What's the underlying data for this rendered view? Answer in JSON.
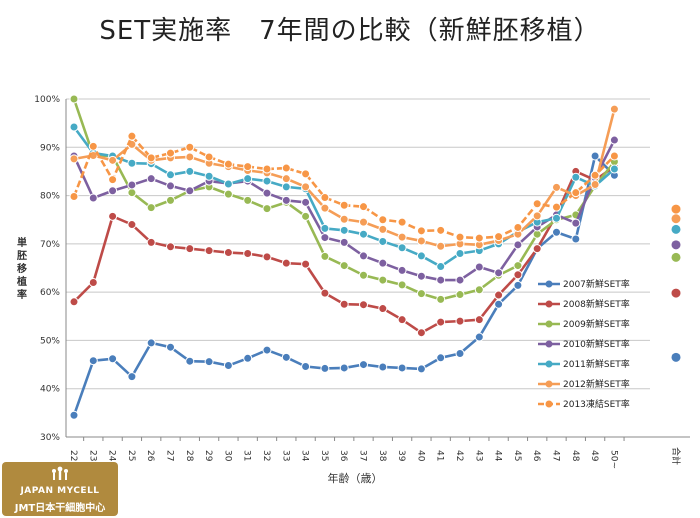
{
  "title": "SET実施率　7年間の比較（新鮮胚移植）",
  "logo": {
    "line1": "JAPAN MYCELL",
    "line2": "JMT日本干細胞中心"
  },
  "chart_data": {
    "type": "line",
    "xlabel": "年齢（歳）",
    "ylabel": "単胚移植率",
    "ylim": [
      30,
      100
    ],
    "yticks": [
      "30%",
      "40%",
      "50%",
      "60%",
      "70%",
      "80%",
      "90%",
      "100%"
    ],
    "categories": [
      "22",
      "23",
      "24",
      "25",
      "26",
      "27",
      "28",
      "29",
      "30",
      "31",
      "32",
      "33",
      "34",
      "35",
      "36",
      "37",
      "38",
      "39",
      "40",
      "41",
      "42",
      "43",
      "44",
      "45",
      "46",
      "47",
      "48",
      "49",
      "50~"
    ],
    "total_label": "合計",
    "grid": true,
    "legend_position": "right",
    "series": [
      {
        "name": "2007新鮮SET率",
        "color": "#4a7ebb",
        "total": 46.5,
        "values": [
          34.5,
          45.8,
          46.2,
          42.5,
          49.5,
          48.6,
          45.7,
          45.6,
          44.8,
          46.3,
          48,
          46.5,
          44.6,
          44.2,
          44.3,
          45,
          44.5,
          44.3,
          44.1,
          46.4,
          47.3,
          50.7,
          57.5,
          61.4,
          69,
          72.4,
          71,
          88.2,
          84.2
        ]
      },
      {
        "name": "2008新鮮SET率",
        "color": "#be4b48",
        "total": 59.8,
        "values": [
          58,
          62,
          75.7,
          74,
          70.3,
          69.4,
          69,
          68.6,
          68.2,
          68,
          67.3,
          66,
          65.8,
          59.8,
          57.5,
          57.4,
          56.6,
          54.3,
          51.6,
          53.8,
          54,
          54.3,
          59.4,
          63.6,
          69,
          76,
          85,
          83.2,
          86
        ]
      },
      {
        "name": "2009新鮮SET率",
        "color": "#98b954",
        "total": 67.2,
        "values": [
          100,
          88.3,
          88.2,
          80.6,
          77.5,
          79,
          81,
          81.8,
          80.3,
          79,
          77.3,
          78.6,
          75.7,
          67.4,
          65.5,
          63.5,
          62.5,
          61.5,
          59.7,
          58.5,
          59.5,
          60.5,
          63.5,
          65.5,
          72,
          75,
          76,
          82,
          87
        ]
      },
      {
        "name": "2010新鮮SET率",
        "color": "#7d60a0",
        "total": 69.8,
        "values": [
          88.2,
          79.5,
          81,
          82.2,
          83.5,
          82,
          81,
          83,
          82.5,
          83,
          80.5,
          79,
          78.6,
          71.3,
          70.3,
          67.5,
          66,
          64.5,
          63.3,
          62.5,
          62.5,
          65.2,
          64,
          69.8,
          73.5,
          76,
          74.3,
          83.7,
          91.5
        ]
      },
      {
        "name": "2011新鮮SET率",
        "color": "#46aac5",
        "total": 73,
        "values": [
          94.2,
          88.8,
          88.2,
          86.7,
          86.6,
          84.3,
          85,
          84,
          82.4,
          83.5,
          83,
          81.8,
          81.4,
          73.2,
          72.8,
          72,
          70.5,
          69.2,
          67.5,
          65.3,
          68,
          68.6,
          70,
          72.5,
          74.5,
          75.3,
          83.8,
          82,
          85.5
        ]
      },
      {
        "name": "2012新鮮SET率",
        "color": "#f59d56",
        "total": 75.2,
        "values": [
          87.6,
          88.3,
          87.3,
          90.6,
          87.3,
          87.8,
          88,
          86.7,
          86,
          85.2,
          84.7,
          83.5,
          81.8,
          77.4,
          75.1,
          74.5,
          73,
          71.4,
          70.6,
          69.5,
          70,
          69.8,
          70.7,
          72,
          75.8,
          81.7,
          80,
          82.3,
          97.9
        ]
      },
      {
        "name": "2013凍結SET率",
        "color": "#f79646",
        "dashed": true,
        "total": 77.2,
        "values": [
          79.8,
          90.2,
          83.3,
          92.3,
          87.8,
          88.8,
          90,
          88,
          86.5,
          86,
          85.5,
          85.7,
          84.5,
          79.6,
          78,
          77.7,
          75,
          74.5,
          72.7,
          72.8,
          71.4,
          71.2,
          71.5,
          73.4,
          78.3,
          77.6,
          80.6,
          84.2,
          88.2
        ]
      }
    ]
  }
}
